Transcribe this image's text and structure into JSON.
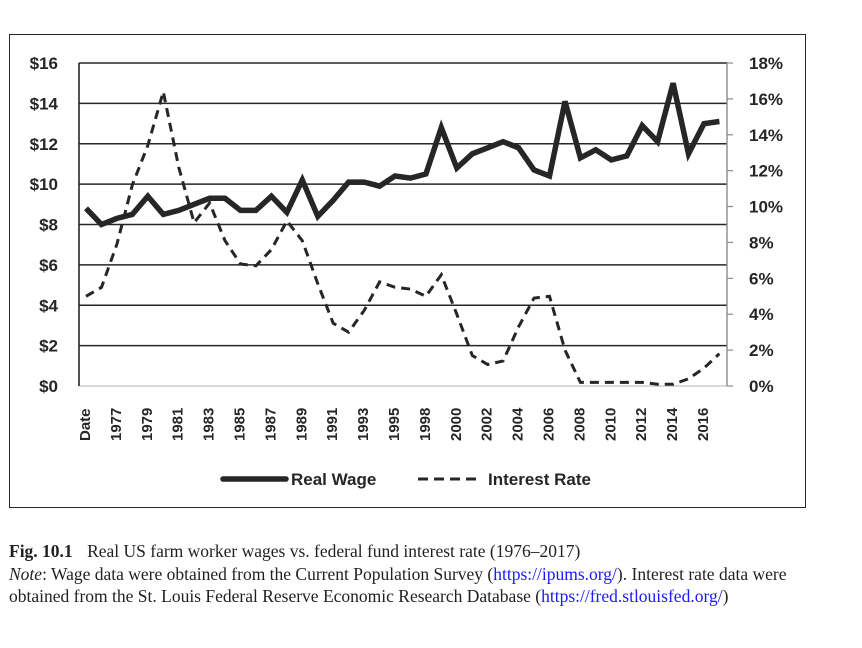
{
  "chart_data": {
    "type": "line",
    "title": "",
    "xlabel": "",
    "ylabel_left": "",
    "ylabel_right": "",
    "x": [
      1976,
      1977,
      1978,
      1979,
      1980,
      1981,
      1982,
      1983,
      1984,
      1985,
      1986,
      1987,
      1988,
      1989,
      1990,
      1991,
      1992,
      1993,
      1994,
      1995,
      1996,
      1997,
      1998,
      1999,
      2000,
      2001,
      2002,
      2003,
      2004,
      2005,
      2006,
      2007,
      2008,
      2009,
      2010,
      2011,
      2012,
      2013,
      2014,
      2015,
      2016,
      2017
    ],
    "x_tick_labels": [
      "Date",
      "1977",
      "1979",
      "1981",
      "1983",
      "1985",
      "1987",
      "1989",
      "1991",
      "1993",
      "1995",
      "1998",
      "2000",
      "2002",
      "2004",
      "2006",
      "2008",
      "2010",
      "2012",
      "2014",
      "2016"
    ],
    "y_left": {
      "range": [
        0,
        16
      ],
      "ticks": [
        0,
        2,
        4,
        6,
        8,
        10,
        12,
        14,
        16
      ],
      "tick_labels": [
        "$0",
        "$2",
        "$4",
        "$6",
        "$8",
        "$10",
        "$12",
        "$14",
        "$16"
      ]
    },
    "y_right": {
      "range": [
        0,
        18
      ],
      "ticks": [
        0,
        2,
        4,
        6,
        8,
        10,
        12,
        14,
        16,
        18
      ],
      "tick_labels": [
        "0%",
        "2%",
        "4%",
        "6%",
        "8%",
        "10%",
        "12%",
        "14%",
        "16%",
        "18%"
      ]
    },
    "grid": true,
    "legend_position": "bottom",
    "series": [
      {
        "name": "Real Wage",
        "axis": "left",
        "style": "solid",
        "values": [
          8.8,
          8.0,
          8.3,
          8.5,
          9.4,
          8.5,
          8.7,
          9.0,
          9.3,
          9.3,
          8.7,
          8.7,
          9.4,
          8.6,
          10.2,
          8.4,
          9.2,
          10.1,
          10.1,
          9.9,
          10.4,
          10.3,
          10.5,
          12.8,
          10.8,
          11.5,
          11.8,
          12.1,
          11.8,
          10.7,
          10.4,
          14.1,
          11.3,
          11.7,
          11.2,
          11.4,
          12.9,
          12.1,
          15.0,
          11.5,
          13.0,
          13.1
        ]
      },
      {
        "name": "Interest Rate",
        "axis": "right",
        "style": "dashed",
        "values": [
          5.0,
          5.5,
          7.9,
          11.2,
          13.4,
          16.4,
          12.2,
          9.1,
          10.2,
          8.1,
          6.8,
          6.7,
          7.6,
          9.2,
          8.1,
          5.7,
          3.5,
          3.0,
          4.2,
          5.8,
          5.5,
          5.4,
          5.0,
          6.2,
          4.0,
          1.7,
          1.2,
          1.4,
          3.3,
          4.9,
          5.0,
          2.0,
          0.2,
          0.2,
          0.2,
          0.2,
          0.2,
          0.1,
          0.1,
          0.4,
          1.0,
          1.8
        ]
      }
    ],
    "colors": {
      "line": "#262626",
      "grid": "#262626",
      "right_axis": "#8c8c8c"
    }
  },
  "caption": {
    "fig_label": "Fig. 10.1",
    "title": "Real US farm worker wages vs. federal fund interest rate (1976–2017)",
    "note_label": "Note",
    "note_text_1": ": Wage data were obtained from the Current Population Survey (",
    "link_1": "https://ipums.org/",
    "note_text_2": "). Interest rate data were obtained from the St. Louis Federal Reserve Economic Research Database (",
    "link_2": "https://fred.stlouisfed.org/",
    "note_text_3": ")",
    "link_color": "#1a1aff"
  }
}
